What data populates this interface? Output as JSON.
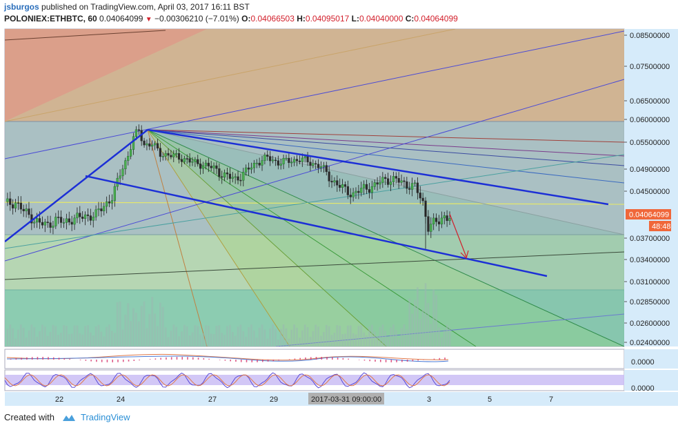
{
  "header": {
    "user": "jsburgos",
    "published": "published on TradingView.com, April 03, 2017 16:11 BST",
    "symbol": "POLONIEX:ETHBTC, 60",
    "last": "0.04064099",
    "change": "−0.00306210 (−7.01%)",
    "o_label": "O:",
    "o": "0.04066503",
    "h_label": "H:",
    "h": "0.04095017",
    "l_label": "L:",
    "l": "0.04040000",
    "c_label": "C:",
    "c": "0.04064099"
  },
  "footer": {
    "created": "Created with",
    "brand": "TradingView"
  },
  "colors": {
    "accent": "#2a6ebb",
    "down": "#d21f2b",
    "trend": "#1c2fd6",
    "price_badge": "#f0673a"
  },
  "chart_data": {
    "type": "candlestick",
    "title": "POLONIEX:ETHBTC, 60",
    "y_ticks": [
      "0.08500000",
      "0.07500000",
      "0.06500000",
      "0.06000000",
      "0.05500000",
      "0.04900000",
      "0.04500000",
      "0.03700000",
      "0.03400000",
      "0.03100000",
      "0.02850000",
      "0.02600000",
      "0.02400000"
    ],
    "x_ticks": [
      "22",
      "24",
      "27",
      "29",
      "3",
      "5",
      "7"
    ],
    "crosshair_time": "2017-03-31 09:00:00",
    "current_price": "0.04064099",
    "countdown": "48:48",
    "ylim": [
      0.024,
      0.086
    ],
    "price_path": [
      [
        0,
        0.0428
      ],
      [
        4,
        0.0431
      ],
      [
        7,
        0.0416
      ],
      [
        10,
        0.0405
      ],
      [
        13,
        0.0395
      ],
      [
        16,
        0.0392
      ],
      [
        19,
        0.0402
      ],
      [
        22,
        0.0396
      ],
      [
        25,
        0.0403
      ],
      [
        28,
        0.0405
      ],
      [
        31,
        0.0408
      ],
      [
        34,
        0.041
      ],
      [
        37,
        0.0425
      ],
      [
        40,
        0.044
      ],
      [
        42,
        0.0465
      ],
      [
        44,
        0.0495
      ],
      [
        46,
        0.052
      ],
      [
        48,
        0.056
      ],
      [
        50,
        0.0575
      ],
      [
        52,
        0.0545
      ],
      [
        55,
        0.0545
      ],
      [
        58,
        0.0525
      ],
      [
        62,
        0.052
      ],
      [
        66,
        0.0515
      ],
      [
        70,
        0.0505
      ],
      [
        74,
        0.05
      ],
      [
        78,
        0.0492
      ],
      [
        82,
        0.0478
      ],
      [
        86,
        0.0472
      ],
      [
        90,
        0.0485
      ],
      [
        94,
        0.0505
      ],
      [
        98,
        0.0515
      ],
      [
        102,
        0.0505
      ],
      [
        106,
        0.0508
      ],
      [
        110,
        0.0512
      ],
      [
        114,
        0.0505
      ],
      [
        118,
        0.0495
      ],
      [
        122,
        0.047
      ],
      [
        126,
        0.0455
      ],
      [
        130,
        0.0445
      ],
      [
        134,
        0.0455
      ],
      [
        138,
        0.046
      ],
      [
        142,
        0.0472
      ],
      [
        146,
        0.047
      ],
      [
        150,
        0.0462
      ],
      [
        153,
        0.0458
      ],
      [
        156,
        0.043
      ],
      [
        158,
        0.039
      ],
      [
        160,
        0.0395
      ],
      [
        162,
        0.0398
      ],
      [
        164,
        0.0408
      ],
      [
        166,
        0.0406
      ]
    ],
    "annotations": [
      "pitchfork",
      "gann fan",
      "fibonacci retracement",
      "descending channel",
      "projection arrow"
    ]
  }
}
